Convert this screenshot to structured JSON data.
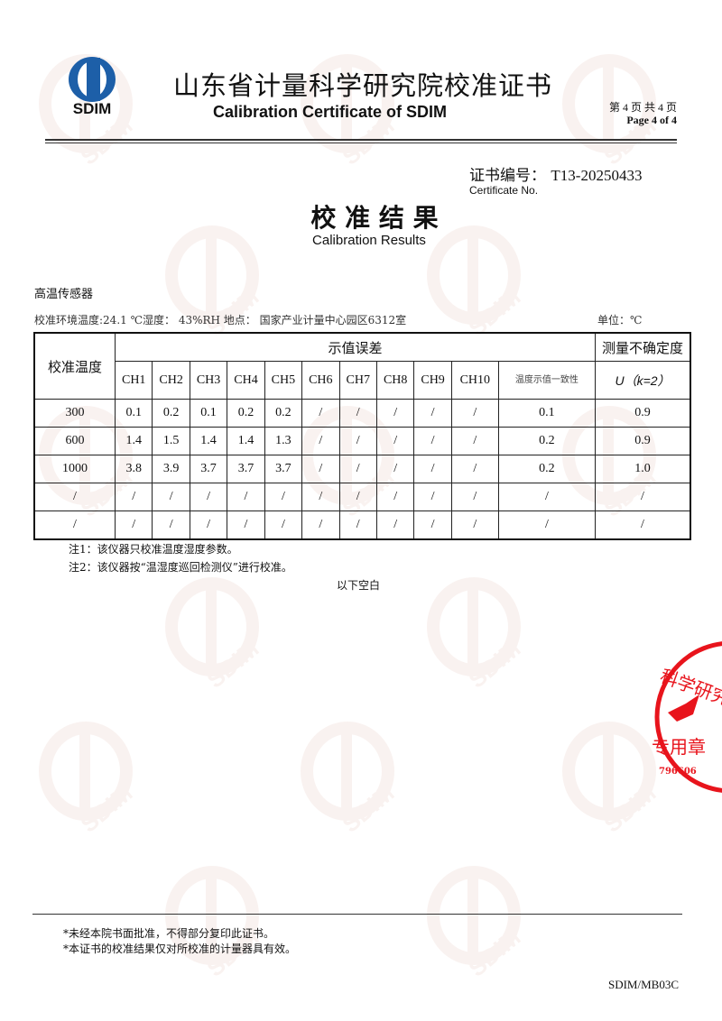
{
  "header": {
    "logo_text": "SDIM",
    "title_cn": "山东省计量科学研究院校准证书",
    "title_en": "Calibration Certificate of SDIM",
    "page_cn": "第 4 页 共 4 页",
    "page_en": "Page 4 of  4"
  },
  "certificate": {
    "label_cn": "证书编号：",
    "number": "T13-20250433",
    "label_en": "Certificate No."
  },
  "section": {
    "title_cn": "校 准 结 果",
    "title_en": "Calibration Results"
  },
  "instrument": "高温传感器",
  "conditions": "校准环境温度:24.1 ℃湿度： 43%RH  地点： 国家产业计量中心园区6312室",
  "unit": "单位：℃",
  "table": {
    "col_temp": "校准温度",
    "group_error": "示值误差",
    "col_uncertainty": "测量不确定度",
    "channels": [
      "CH1",
      "CH2",
      "CH3",
      "CH4",
      "CH5",
      "CH6",
      "CH7",
      "CH8",
      "CH9",
      "CH10"
    ],
    "consistency": "温度示值一致性",
    "u_label": "U（k=2）",
    "rows": [
      [
        "300",
        "0.1",
        "0.2",
        "0.1",
        "0.2",
        "0.2",
        "/",
        "/",
        "/",
        "/",
        "/",
        "0.1",
        "0.9"
      ],
      [
        "600",
        "1.4",
        "1.5",
        "1.4",
        "1.4",
        "1.3",
        "/",
        "/",
        "/",
        "/",
        "/",
        "0.2",
        "0.9"
      ],
      [
        "1000",
        "3.8",
        "3.9",
        "3.7",
        "3.7",
        "3.7",
        "/",
        "/",
        "/",
        "/",
        "/",
        "0.2",
        "1.0"
      ],
      [
        "/",
        "/",
        "/",
        "/",
        "/",
        "/",
        "/",
        "/",
        "/",
        "/",
        "/",
        "/",
        "/"
      ],
      [
        "/",
        "/",
        "/",
        "/",
        "/",
        "/",
        "/",
        "/",
        "/",
        "/",
        "/",
        "/",
        "/"
      ]
    ]
  },
  "notes": [
    "注1：该仪器只校准温度湿度参数。",
    "注2：该仪器按“温湿度巡回检测仪”进行校准。"
  ],
  "blank_below": "以下空白",
  "stamp": {
    "text": "科学研究院 专用章",
    "number": "796606",
    "color": "#e8141c"
  },
  "footer": {
    "lines": [
      "*未经本院书面批准，不得部分复印此证书。",
      "*本证书的校准结果仅对所校准的计量器具有效。"
    ],
    "code": "SDIM/MB03C"
  },
  "colors": {
    "logo_blue": "#1d5fa8",
    "watermark": "#d9a090",
    "stamp": "#e8141c"
  }
}
